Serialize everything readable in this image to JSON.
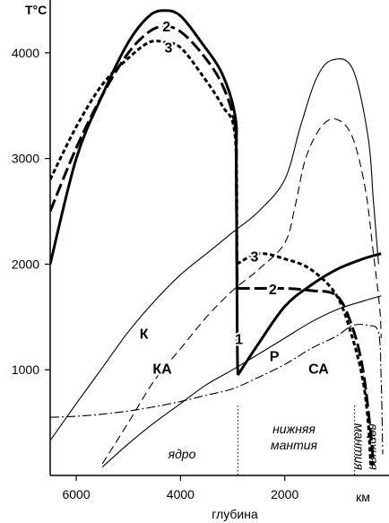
{
  "chart_data": {
    "type": "line",
    "ylabel": "T°C",
    "xlabel": "глубина",
    "x_unit": "км",
    "x_range": [
      6500,
      0
    ],
    "y_range": [
      0,
      4500
    ],
    "x_ticks": [
      6000,
      4000,
      2000
    ],
    "y_ticks": [
      1000,
      2000,
      3000,
      4000
    ],
    "x_tick_labels": [
      "6000",
      "4000",
      "2000"
    ],
    "y_tick_labels": [
      "1000",
      "2000",
      "3000",
      "4000"
    ],
    "boundaries": [
      2900,
      660
    ],
    "zones": [
      "ядро",
      "нижняя мантия",
      "верхняя мантия"
    ],
    "series": [
      {
        "name": "1",
        "style": "solid-thick",
        "segments": [
          [
            [
              6500,
              2000
            ],
            [
              6000,
              3000
            ],
            [
              5500,
              3600
            ],
            [
              5000,
              4100
            ],
            [
              4600,
              4350
            ],
            [
              4300,
              4400
            ],
            [
              4000,
              4350
            ],
            [
              3600,
              4100
            ],
            [
              3200,
              3800
            ],
            [
              2950,
              3400
            ],
            [
              2930,
              3000
            ],
            [
              2920,
              2000
            ],
            [
              2910,
              1200
            ],
            [
              2900,
              950
            ]
          ],
          [
            [
              2900,
              950
            ],
            [
              2500,
              1250
            ],
            [
              2000,
              1600
            ],
            [
              1500,
              1800
            ],
            [
              1000,
              1950
            ],
            [
              500,
              2050
            ],
            [
              150,
              2100
            ]
          ]
        ]
      },
      {
        "name": "2",
        "style": "long-dash-thick",
        "segments": [
          [
            [
              6500,
              2500
            ],
            [
              6000,
              3100
            ],
            [
              5500,
              3600
            ],
            [
              5000,
              4000
            ],
            [
              4600,
              4200
            ],
            [
              4300,
              4250
            ],
            [
              4000,
              4200
            ],
            [
              3600,
              4000
            ],
            [
              3200,
              3700
            ],
            [
              2950,
              3300
            ],
            [
              2930,
              2800
            ],
            [
              2920,
              2200
            ],
            [
              2910,
              1770
            ]
          ],
          [
            [
              2910,
              1770
            ],
            [
              2500,
              1770
            ],
            [
              2000,
              1770
            ],
            [
              1500,
              1750
            ],
            [
              1000,
              1700
            ],
            [
              700,
              1400
            ],
            [
              500,
              1000
            ],
            [
              350,
              400
            ],
            [
              300,
              100
            ]
          ]
        ]
      },
      {
        "name": "3",
        "style": "short-dash-thick",
        "segments": [
          [
            [
              6500,
              2800
            ],
            [
              6000,
              3300
            ],
            [
              5500,
              3700
            ],
            [
              5000,
              3950
            ],
            [
              4600,
              4100
            ],
            [
              4300,
              4100
            ],
            [
              4000,
              4050
            ],
            [
              3600,
              3800
            ],
            [
              3200,
              3500
            ],
            [
              2950,
              3200
            ],
            [
              2920,
              2000
            ]
          ],
          [
            [
              2920,
              2000
            ],
            [
              2500,
              2100
            ],
            [
              2000,
              2050
            ],
            [
              1500,
              1950
            ],
            [
              1000,
              1700
            ],
            [
              700,
              1300
            ],
            [
              500,
              900
            ],
            [
              400,
              500
            ],
            [
              350,
              100
            ]
          ]
        ]
      },
      {
        "name": "К",
        "style": "solid-thin",
        "segments": [
          [
            [
              6500,
              330
            ],
            [
              6000,
              680
            ],
            [
              5500,
              1020
            ],
            [
              5000,
              1360
            ],
            [
              4500,
              1650
            ],
            [
              4000,
              1900
            ],
            [
              3500,
              2100
            ],
            [
              3000,
              2300
            ],
            [
              2500,
              2500
            ],
            [
              2000,
              2800
            ],
            [
              1700,
              3300
            ],
            [
              1400,
              3750
            ],
            [
              1100,
              3930
            ],
            [
              700,
              3850
            ],
            [
              400,
              3200
            ],
            [
              300,
              2600
            ],
            [
              200,
              2000
            ]
          ]
        ]
      },
      {
        "name": "КА",
        "style": "dashed-thin",
        "segments": [
          [
            [
              5500,
              110
            ],
            [
              5000,
              500
            ],
            [
              4500,
              900
            ],
            [
              4000,
              1200
            ],
            [
              3500,
              1500
            ],
            [
              3000,
              1750
            ],
            [
              2500,
              1950
            ],
            [
              2000,
              2200
            ],
            [
              1800,
              2550
            ],
            [
              1600,
              3000
            ],
            [
              1300,
              3300
            ],
            [
              1000,
              3370
            ],
            [
              700,
              3200
            ],
            [
              450,
              2700
            ],
            [
              300,
              2100
            ],
            [
              180,
              1600
            ],
            [
              150,
              1300
            ]
          ]
        ]
      },
      {
        "name": "Р",
        "style": "solid-thin",
        "segments": [
          [
            [
              5500,
              80
            ],
            [
              5000,
              300
            ],
            [
              4500,
              500
            ],
            [
              4000,
              680
            ],
            [
              3500,
              860
            ],
            [
              3000,
              1000
            ],
            [
              2500,
              1150
            ],
            [
              2000,
              1300
            ],
            [
              1500,
              1450
            ],
            [
              1000,
              1570
            ],
            [
              500,
              1650
            ],
            [
              150,
              1700
            ]
          ]
        ]
      },
      {
        "name": "СА",
        "style": "dash-dot-thin",
        "segments": [
          [
            [
              6500,
              550
            ],
            [
              6000,
              560
            ],
            [
              5500,
              580
            ],
            [
              5000,
              610
            ],
            [
              4500,
              650
            ],
            [
              4000,
              700
            ],
            [
              3500,
              760
            ],
            [
              3000,
              820
            ],
            [
              2500,
              930
            ],
            [
              2000,
              1050
            ],
            [
              1500,
              1200
            ],
            [
              1000,
              1320
            ],
            [
              700,
              1420
            ],
            [
              400,
              1420
            ],
            [
              200,
              1350
            ],
            [
              150,
              900
            ],
            [
              120,
              200
            ]
          ]
        ]
      }
    ],
    "curve_labels": [
      {
        "text": "2",
        "x": 4270,
        "y": 4240
      },
      {
        "text": "3",
        "x": 4230,
        "y": 4040
      },
      {
        "text": "3",
        "x": 2580,
        "y": 2060
      },
      {
        "text": "2",
        "x": 2230,
        "y": 1750
      },
      {
        "text": "1",
        "x": 2880,
        "y": 1280
      },
      {
        "text": "К",
        "x": 4700,
        "y": 1330
      },
      {
        "text": "КА",
        "x": 4350,
        "y": 1000
      },
      {
        "text": "Р",
        "x": 2200,
        "y": 1120
      },
      {
        "text": "СА",
        "x": 1350,
        "y": 1000
      }
    ]
  }
}
